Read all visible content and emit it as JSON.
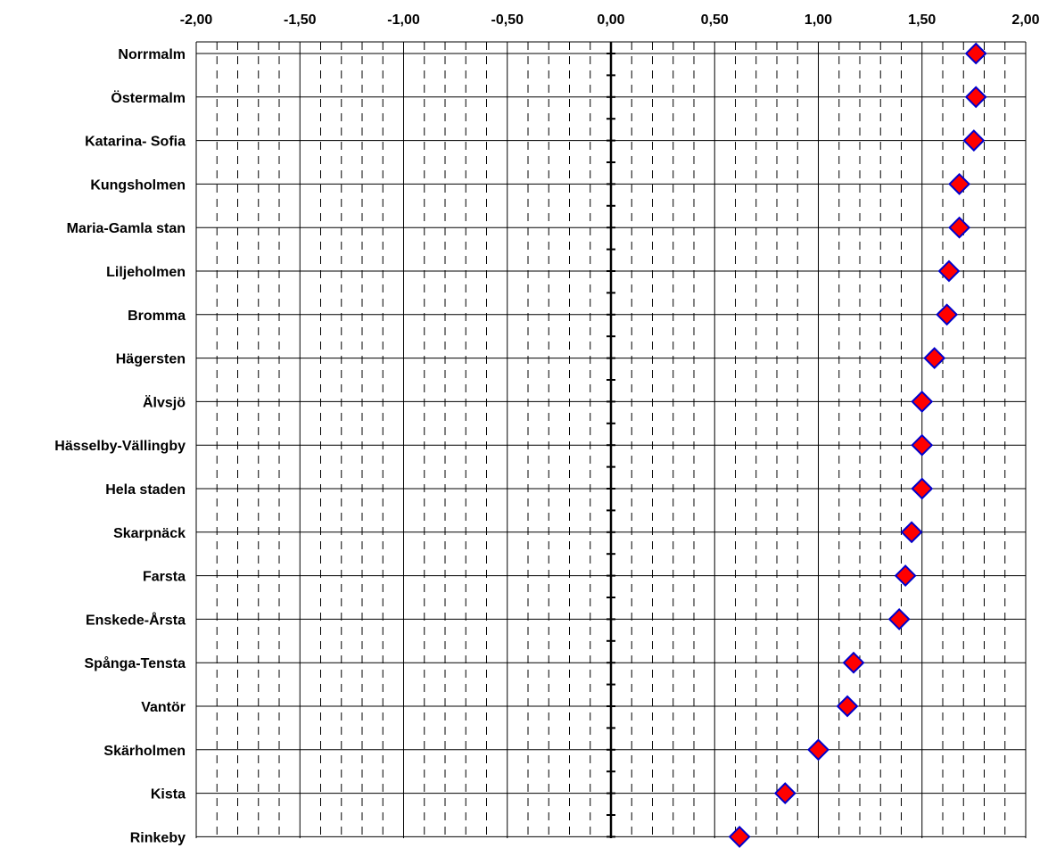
{
  "chart_data": {
    "type": "scatter",
    "orientation": "horizontal",
    "xlim": [
      -2.0,
      2.0
    ],
    "x_ticks": [
      "-2,00",
      "-1,50",
      "-1,00",
      "-0,50",
      "0,00",
      "0,50",
      "1,00",
      "1,50",
      "2,00"
    ],
    "x_tick_values": [
      -2.0,
      -1.5,
      -1.0,
      -0.5,
      0.0,
      0.5,
      1.0,
      1.5,
      2.0
    ],
    "x_axis_position": "top",
    "categories": [
      "Norrmalm",
      "Östermalm",
      "Katarina- Sofia",
      "Kungsholmen",
      "Maria-Gamla stan",
      "Liljeholmen",
      "Bromma",
      "Hägersten",
      "Älvsjö",
      "Hässelby-Vällingby",
      "Hela staden",
      "Skarpnäck",
      "Farsta",
      "Enskede-Årsta",
      "Spånga-Tensta",
      "Vantör",
      "Skärholmen",
      "Kista",
      "Rinkeby"
    ],
    "values": [
      1.76,
      1.76,
      1.75,
      1.68,
      1.68,
      1.63,
      1.62,
      1.56,
      1.5,
      1.5,
      1.5,
      1.45,
      1.42,
      1.39,
      1.17,
      1.14,
      1.0,
      0.84,
      0.62
    ],
    "grid": {
      "major_x": true,
      "minor_x_dashed": true,
      "horizontal": true
    },
    "marker": {
      "shape": "diamond",
      "fill": "#ff0000",
      "stroke": "#0000cc"
    },
    "colors": {
      "grid": "#000000",
      "background": "#ffffff"
    }
  }
}
